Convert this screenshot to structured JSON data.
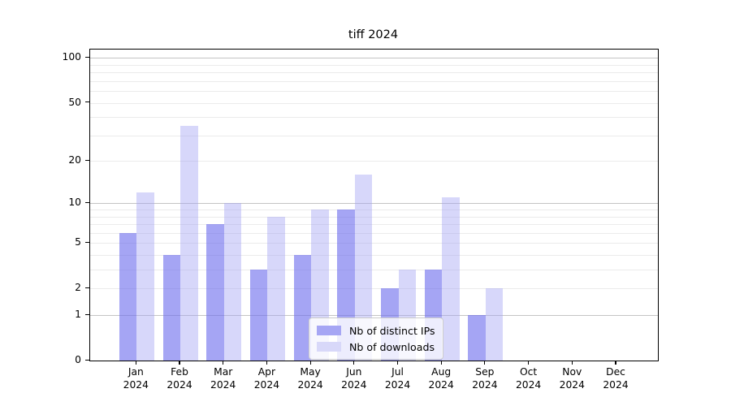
{
  "chart_data": {
    "type": "bar",
    "title": "tiff 2024",
    "categories": [
      "Jan",
      "Feb",
      "Mar",
      "Apr",
      "May",
      "Jun",
      "Jul",
      "Aug",
      "Sep",
      "Oct",
      "Nov",
      "Dec"
    ],
    "x_sublabel": "2024",
    "series": [
      {
        "name": "Nb of distinct IPs",
        "values": [
          6,
          4,
          7,
          3,
          4,
          9,
          2,
          3,
          1,
          0,
          0,
          0
        ],
        "bar_color": "rgba(110,110,238,0.62)",
        "legend_swatch_color": "#a6a6f4"
      },
      {
        "name": "Nb of downloads",
        "values": [
          12,
          35,
          10,
          8,
          9,
          16,
          3,
          11,
          2,
          0,
          0,
          0
        ],
        "bar_color": "rgba(160,160,242,0.42)",
        "legend_swatch_color": "#d8d8f9"
      }
    ],
    "yscale": "log1p",
    "ylim": [
      0,
      114
    ],
    "yticks": [
      0,
      1,
      2,
      5,
      10,
      20,
      50,
      100
    ],
    "grid_major": [
      1,
      10,
      100
    ],
    "grid_minor": [
      2,
      3,
      4,
      5,
      6,
      7,
      8,
      9,
      20,
      30,
      40,
      50,
      60,
      70,
      80,
      90
    ],
    "legend_position": "lower center",
    "colors": {
      "grid_major": "#c4c4c4",
      "grid_minor": "#ebebeb",
      "spine": "#000000",
      "text": "#000000",
      "legend_border": "#cccccc"
    }
  }
}
